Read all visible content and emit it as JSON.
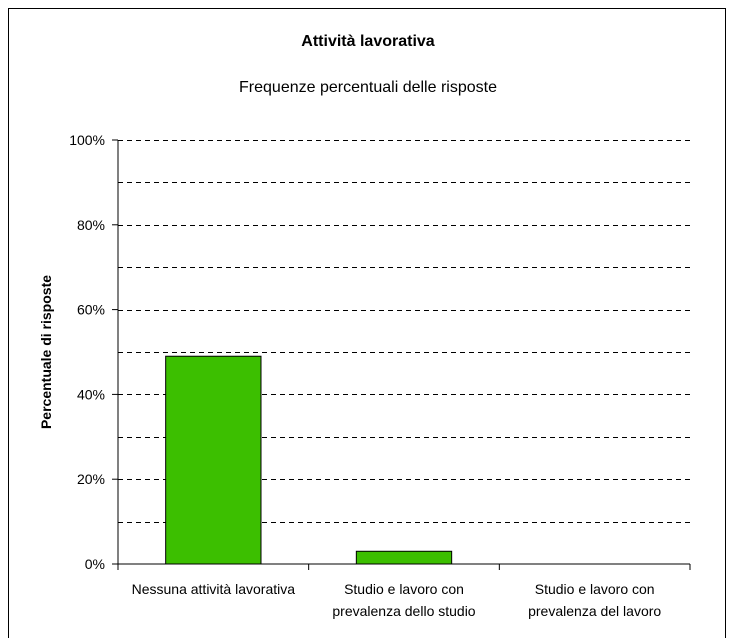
{
  "chart_data": {
    "type": "bar",
    "title": "Attività lavorativa",
    "subtitle": "Frequenze percentuali delle risposte",
    "xlabel": "",
    "ylabel": "Percentuale di risposte",
    "categories": [
      [
        "Nessuna attività lavorativa"
      ],
      [
        "Studio e lavoro con",
        "prevalenza dello studio"
      ],
      [
        "Studio e lavoro con",
        "prevalenza del lavoro"
      ]
    ],
    "values": [
      49,
      3,
      0
    ],
    "ylim": [
      0,
      100
    ],
    "ytick_values": [
      0,
      20,
      40,
      60,
      80,
      100
    ],
    "ytick_labels": [
      "0%",
      "20%",
      "40%",
      "60%",
      "80%",
      "100%"
    ],
    "gridline_step": 10,
    "grid": true,
    "legend": "none",
    "colors": {
      "bar": "#3cbf00",
      "bar_edge": "#000000",
      "grid": "#000000"
    }
  }
}
